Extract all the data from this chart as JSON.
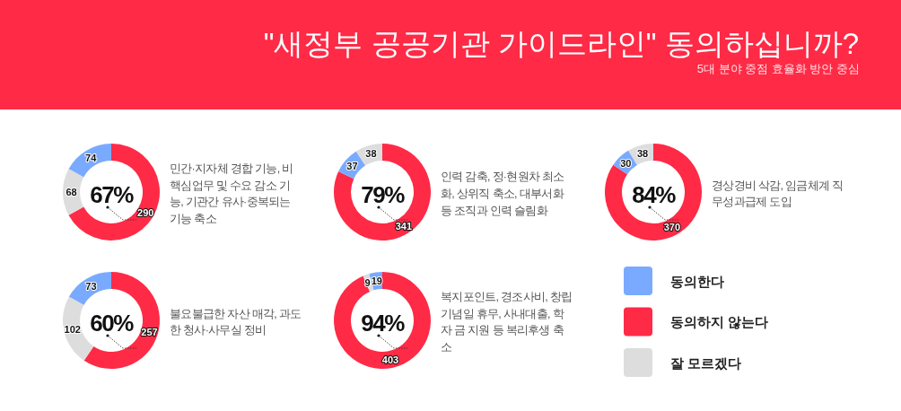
{
  "chart_data": [
    {
      "type": "other",
      "title": "\"새정부 공공기관 가이드라인\" 동의하십니까?",
      "subtitle": "5대 분야 중점 효율화 방안 중심"
    },
    {
      "type": "donut",
      "title": "민간·지자체 경합 기능, 비핵심업무 및 수요 감소 기능, 기관간 유사·중복되는 기능 축소",
      "categories": [
        null,
        null,
        null
      ],
      "values": [
        74,
        290,
        68
      ],
      "colors": [
        "#7aaaff",
        "#ff2a46",
        "#dddddd"
      ],
      "data_labels": true,
      "annotations": [
        "67%"
      ]
    },
    {
      "type": "donut",
      "title": "인력 감축, 정·현원차 최소화, 상위직 축소, 대부서화 등 조직과 인력 슬림화",
      "categories": [
        null,
        null,
        null
      ],
      "values": [
        38,
        341,
        37
      ],
      "colors": [
        "#dddddd",
        "#ff2a46",
        "#7aaaff"
      ],
      "data_labels": true,
      "annotations": [
        "79%"
      ]
    },
    {
      "type": "donut",
      "title": "경상경비 삭감, 임금체계 직무성과급제 도입",
      "categories": [
        null,
        null,
        null
      ],
      "values": [
        38,
        370,
        30
      ],
      "colors": [
        "#dddddd",
        "#ff2a46",
        "#7aaaff"
      ],
      "data_labels": true,
      "annotations": [
        "84%"
      ]
    },
    {
      "type": "donut",
      "title": "불요불급한 자산 매각, 과도한 청사·사무실 정비",
      "categories": [
        null,
        null,
        null
      ],
      "values": [
        73,
        257,
        102
      ],
      "colors": [
        "#7aaaff",
        "#ff2a46",
        "#dddddd"
      ],
      "data_labels": true,
      "annotations": [
        "60%"
      ]
    },
    {
      "type": "donut",
      "title": "복지포인트, 경조사비, 창립기념일 휴무, 사내대출, 학자 금 지원 등 복리후생 축소",
      "categories": [
        "동의한다",
        "동의하지 않는다",
        "잘 모르겠다"
      ],
      "values": [
        19,
        403,
        9
      ],
      "colors": [
        "#7aaaff",
        "#ff2a46",
        "#dddddd"
      ],
      "data_labels": true,
      "annotations": [
        "94%"
      ],
      "legend": "right"
    }
  ]
}
